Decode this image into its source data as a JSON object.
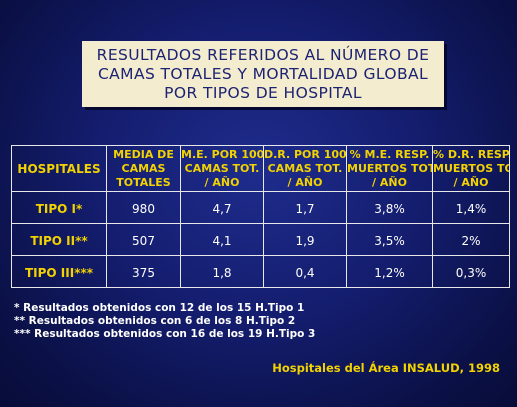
{
  "title": {
    "lines": [
      "RESULTADOS REFERIDOS AL NÚMERO DE",
      "CAMAS TOTALES Y MORTALIDAD GLOBAL",
      "POR TIPOS DE HOSPITAL"
    ]
  },
  "table": {
    "headers": [
      {
        "lines": [
          "HOSPITALES"
        ]
      },
      {
        "lines": [
          "MEDIA DE",
          "CAMAS",
          "TOTALES"
        ]
      },
      {
        "lines": [
          "M.E. POR 100",
          "CAMAS TOT.",
          "/ AÑO"
        ]
      },
      {
        "lines": [
          "D.R. POR 100",
          "CAMAS TOT.",
          "/ AÑO"
        ]
      },
      {
        "lines": [
          "% M.E. RESP.",
          "MUERTOS TOT.",
          "/ AÑO"
        ]
      },
      {
        "lines": [
          "% D.R. RESP.",
          "MUERTOS TOT",
          "/ AÑO"
        ]
      }
    ],
    "rows": [
      {
        "label": "TIPO I*",
        "values": [
          "980",
          "4,7",
          "1,7",
          "3,8%",
          "1,4%"
        ]
      },
      {
        "label": "TIPO II**",
        "values": [
          "507",
          "4,1",
          "1,9",
          "3,5%",
          "2%"
        ]
      },
      {
        "label": "TIPO III***",
        "values": [
          "375",
          "1,8",
          "0,4",
          "1,2%",
          "0,3%"
        ]
      }
    ]
  },
  "notes": [
    "* Resultados obtenidos con 12 de los 15 H.Tipo 1",
    "** Resultados obtenidos con 6 de los 8 H.Tipo 2",
    "*** Resultados obtenidos con 16 de los 19 H.Tipo 3"
  ],
  "source": "Hospitales del Área INSALUD, 1998"
}
